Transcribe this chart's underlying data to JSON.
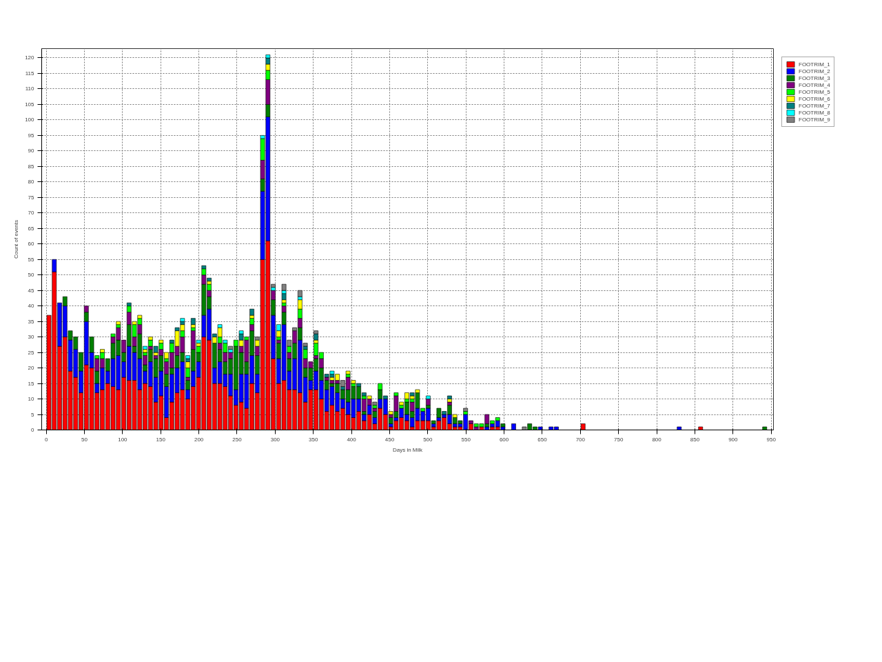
{
  "chart_data": {
    "type": "bar",
    "stacked": true,
    "xlabel": "Days in Milk",
    "ylabel": "Count of events",
    "x": [
      3.5,
      10.5,
      17.5,
      24.5,
      31.5,
      38.5,
      45.5,
      52.5,
      59.5,
      66.5,
      73.5,
      80.5,
      87.5,
      94.5,
      101.5,
      108.5,
      115.5,
      122.5,
      129.5,
      136.5,
      143.5,
      150.5,
      157.5,
      164.5,
      171.5,
      178.5,
      185.5,
      192.5,
      199.5,
      206.5,
      213.5,
      220.5,
      227.5,
      234.5,
      241.5,
      248.5,
      255.5,
      262.5,
      269.5,
      276.5,
      283.5,
      290.5,
      297.5,
      304.5,
      311.5,
      318.5,
      325.5,
      332.5,
      339.5,
      346.5,
      353.5,
      360.5,
      367.5,
      374.5,
      381.5,
      388.5,
      395.5,
      402.5,
      409.5,
      416.5,
      423.5,
      430.5,
      437.5,
      444.5,
      451.5,
      458.5,
      465.5,
      472.5,
      479.5,
      486.5,
      493.5,
      500.5,
      507.5,
      514.5,
      521.5,
      528.5,
      535.5,
      542.5,
      549.5,
      556.5,
      563.5,
      570.5,
      577.5,
      584.5,
      591.5,
      598.5,
      612.5,
      626.5,
      633.5,
      640.5,
      647.5,
      661.5,
      668.5,
      703.5,
      829.5,
      857.5,
      941.5
    ],
    "series": [
      {
        "name": "FOOTRIM_1",
        "color": "#ff0000",
        "values": [
          37,
          51,
          27,
          30,
          19,
          17,
          12,
          21,
          20,
          12,
          13,
          15,
          14,
          13,
          17,
          16,
          16,
          13,
          15,
          14,
          9,
          11,
          4,
          9,
          12,
          13,
          10,
          14,
          17,
          30,
          29,
          15,
          15,
          14,
          11,
          8,
          9,
          7,
          15,
          12,
          55,
          61,
          23,
          15,
          16,
          13,
          13,
          12,
          9,
          13,
          13,
          10,
          6,
          8,
          6,
          7,
          5,
          4,
          6,
          3,
          5,
          2,
          7,
          5,
          1,
          3,
          4,
          3,
          1,
          3,
          3,
          3,
          1,
          3,
          4,
          2,
          1,
          1,
          0,
          2,
          0,
          1,
          0,
          1,
          1,
          0,
          0,
          0,
          0,
          0,
          0,
          0,
          0,
          2,
          0,
          1,
          0
        ]
      },
      {
        "name": "FOOTRIM_2",
        "color": "#0000ff",
        "values": [
          0,
          4,
          14,
          10,
          10,
          9,
          7,
          14,
          5,
          3,
          7,
          4,
          9,
          11,
          5,
          11,
          9,
          10,
          4,
          8,
          8,
          8,
          10,
          9,
          8,
          9,
          3,
          5,
          5,
          7,
          10,
          5,
          7,
          4,
          7,
          5,
          9,
          11,
          9,
          6,
          22,
          40,
          14,
          8,
          18,
          6,
          10,
          17,
          8,
          3,
          6,
          6,
          7,
          6,
          6,
          3,
          4,
          6,
          4,
          2,
          3,
          2,
          3,
          5,
          1,
          1,
          3,
          2,
          3,
          4,
          3,
          4,
          1,
          1,
          1,
          3,
          1,
          1,
          5,
          0,
          0,
          0,
          1,
          1,
          2,
          1,
          2,
          0,
          0,
          0,
          1,
          1,
          1,
          0,
          1,
          0,
          0
        ]
      },
      {
        "name": "FOOTRIM_3",
        "color": "#008000",
        "values": [
          0,
          0,
          0,
          3,
          3,
          4,
          6,
          3,
          5,
          4,
          0,
          4,
          5,
          5,
          3,
          7,
          2,
          8,
          2,
          4,
          6,
          5,
          4,
          2,
          4,
          3,
          3,
          7,
          3,
          10,
          4,
          8,
          4,
          4,
          5,
          14,
          7,
          4,
          8,
          6,
          4,
          4,
          5,
          5,
          4,
          4,
          5,
          4,
          3,
          4,
          4,
          4,
          3,
          1,
          3,
          3,
          4,
          4,
          4,
          1,
          0,
          2,
          3,
          0,
          2,
          2,
          0,
          4,
          2,
          5,
          0,
          1,
          1,
          3,
          0,
          3,
          2,
          1,
          0,
          0,
          0,
          0,
          1,
          0,
          0,
          1,
          0,
          0,
          2,
          1,
          0,
          0,
          0,
          0,
          0,
          0,
          1
        ]
      },
      {
        "name": "FOOTRIM_4",
        "color": "#800080",
        "values": [
          0,
          0,
          0,
          0,
          0,
          0,
          0,
          2,
          0,
          4,
          3,
          0,
          2,
          4,
          4,
          4,
          3,
          3,
          3,
          1,
          1,
          2,
          4,
          5,
          3,
          5,
          1,
          6,
          0,
          3,
          2,
          0,
          2,
          3,
          2,
          0,
          2,
          7,
          2,
          3,
          6,
          8,
          3,
          1,
          2,
          2,
          4,
          3,
          3,
          2,
          1,
          3,
          1,
          1,
          1,
          0,
          4,
          0,
          0,
          4,
          2,
          1,
          0,
          0,
          1,
          5,
          0,
          0,
          3,
          0,
          0,
          2,
          0,
          0,
          0,
          1,
          0,
          0,
          0,
          1,
          1,
          0,
          3,
          0,
          0,
          0,
          0,
          0,
          0,
          0,
          0,
          0,
          0,
          0,
          0,
          0,
          0
        ]
      },
      {
        "name": "FOOTRIM_5",
        "color": "#00ff00",
        "values": [
          0,
          0,
          0,
          0,
          0,
          0,
          0,
          0,
          0,
          1,
          2,
          0,
          1,
          1,
          0,
          2,
          4,
          2,
          1,
          2,
          0,
          2,
          1,
          3,
          0,
          2,
          3,
          1,
          2,
          2,
          2,
          0,
          2,
          3,
          0,
          2,
          0,
          1,
          2,
          0,
          7,
          3,
          0,
          1,
          1,
          2,
          0,
          3,
          3,
          0,
          4,
          2,
          0,
          0,
          0,
          0,
          1,
          1,
          0,
          1,
          0,
          1,
          2,
          0,
          0,
          1,
          1,
          1,
          1,
          0,
          1,
          0,
          0,
          0,
          0,
          0,
          0,
          0,
          1,
          0,
          1,
          1,
          0,
          1,
          1,
          0,
          0,
          0,
          0,
          0,
          0,
          0,
          0,
          0,
          0,
          0,
          0
        ]
      },
      {
        "name": "FOOTRIM_6",
        "color": "#ffff00",
        "values": [
          0,
          0,
          0,
          0,
          0,
          0,
          0,
          0,
          0,
          0,
          1,
          0,
          0,
          1,
          0,
          0,
          1,
          1,
          1,
          1,
          1,
          1,
          2,
          0,
          5,
          2,
          2,
          1,
          1,
          0,
          1,
          2,
          3,
          0,
          0,
          0,
          2,
          0,
          1,
          2,
          0,
          2,
          0,
          2,
          1,
          0,
          0,
          3,
          0,
          0,
          1,
          0,
          0,
          1,
          2,
          0,
          1,
          1,
          0,
          0,
          1,
          0,
          0,
          0,
          1,
          0,
          1,
          2,
          1,
          1,
          0,
          0,
          0,
          0,
          0,
          1,
          1,
          0,
          0,
          0,
          0,
          0,
          0,
          0,
          0,
          0,
          0,
          0,
          0,
          0,
          0,
          0,
          0,
          0,
          0,
          0,
          0
        ]
      },
      {
        "name": "FOOTRIM_7",
        "color": "#008080",
        "values": [
          0,
          0,
          0,
          0,
          0,
          0,
          0,
          0,
          0,
          0,
          0,
          0,
          0,
          0,
          0,
          1,
          0,
          0,
          0,
          0,
          2,
          0,
          0,
          1,
          1,
          1,
          1,
          2,
          0,
          1,
          1,
          1,
          0,
          0,
          0,
          0,
          2,
          0,
          2,
          0,
          0,
          2,
          0,
          0,
          2,
          0,
          0,
          0,
          1,
          0,
          2,
          0,
          1,
          1,
          0,
          1,
          0,
          0,
          1,
          1,
          0,
          0,
          0,
          1,
          0,
          0,
          0,
          0,
          1,
          0,
          0,
          0,
          0,
          0,
          1,
          1,
          0,
          0,
          0,
          0,
          0,
          0,
          0,
          0,
          0,
          0,
          0,
          0,
          0,
          0,
          0,
          0,
          0,
          0,
          0,
          0,
          0
        ]
      },
      {
        "name": "FOOTRIM_8",
        "color": "#00ffff",
        "values": [
          0,
          0,
          0,
          0,
          0,
          0,
          0,
          0,
          0,
          0,
          0,
          0,
          0,
          0,
          0,
          0,
          0,
          0,
          1,
          0,
          0,
          0,
          0,
          0,
          0,
          1,
          1,
          0,
          1,
          0,
          0,
          0,
          1,
          1,
          1,
          0,
          1,
          0,
          0,
          0,
          1,
          1,
          1,
          2,
          1,
          0,
          0,
          1,
          0,
          0,
          0,
          0,
          0,
          1,
          0,
          0,
          0,
          0,
          0,
          0,
          0,
          0,
          0,
          0,
          0,
          0,
          0,
          0,
          0,
          0,
          0,
          1,
          0,
          0,
          0,
          0,
          0,
          0,
          0,
          0,
          0,
          0,
          0,
          0,
          0,
          0,
          0,
          0,
          0,
          0,
          0,
          0,
          0,
          0,
          0,
          0,
          0
        ]
      },
      {
        "name": "FOOTRIM_9",
        "color": "#808080",
        "values": [
          0,
          0,
          0,
          0,
          0,
          0,
          0,
          0,
          0,
          0,
          0,
          0,
          0,
          0,
          0,
          0,
          0,
          0,
          0,
          0,
          0,
          0,
          0,
          0,
          0,
          0,
          0,
          0,
          0,
          0,
          0,
          0,
          0,
          0,
          1,
          0,
          0,
          0,
          0,
          1,
          0,
          0,
          1,
          0,
          2,
          2,
          1,
          2,
          1,
          0,
          1,
          0,
          0,
          0,
          0,
          2,
          0,
          0,
          0,
          0,
          0,
          1,
          0,
          0,
          0,
          0,
          0,
          0,
          0,
          0,
          0,
          0,
          0,
          0,
          0,
          0,
          0,
          0,
          1,
          0,
          0,
          0,
          0,
          0,
          0,
          0,
          0,
          1,
          0,
          0,
          0,
          0,
          0,
          0,
          0,
          0,
          0
        ]
      }
    ],
    "xlim": [
      -6,
      953
    ],
    "ylim": [
      0,
      123
    ],
    "xticks": [
      0,
      50,
      100,
      150,
      200,
      250,
      300,
      350,
      400,
      450,
      500,
      550,
      600,
      650,
      700,
      750,
      800,
      850,
      900,
      950
    ],
    "yticks": [
      0,
      5,
      10,
      15,
      20,
      25,
      30,
      35,
      40,
      45,
      50,
      55,
      60,
      65,
      70,
      75,
      80,
      85,
      90,
      95,
      100,
      105,
      110,
      115,
      120
    ],
    "grid": true,
    "legend": "right"
  }
}
